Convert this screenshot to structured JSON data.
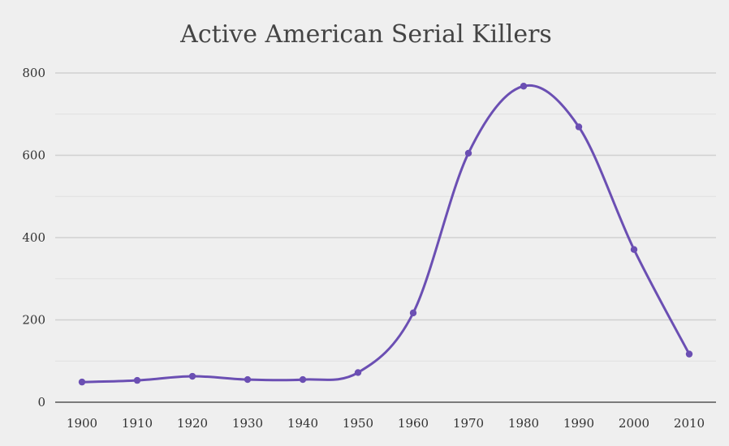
{
  "chart_data": {
    "type": "line",
    "title": "Active American Serial Killers",
    "xlabel": "",
    "ylabel": "",
    "x": [
      "1900",
      "1910",
      "1920",
      "1930",
      "1940",
      "1950",
      "1960",
      "1970",
      "1980",
      "1990",
      "2000",
      "2010"
    ],
    "series": [
      {
        "values": [
          49,
          53,
          63,
          55,
          55,
          72,
          217,
          605,
          768,
          669,
          371,
          117
        ],
        "color": "#6b4fb3"
      }
    ],
    "ylim": [
      0,
      800
    ],
    "yticks": [
      "0",
      "200",
      "400",
      "600",
      "800"
    ],
    "grid": true,
    "legend": "none",
    "smooth": true
  }
}
